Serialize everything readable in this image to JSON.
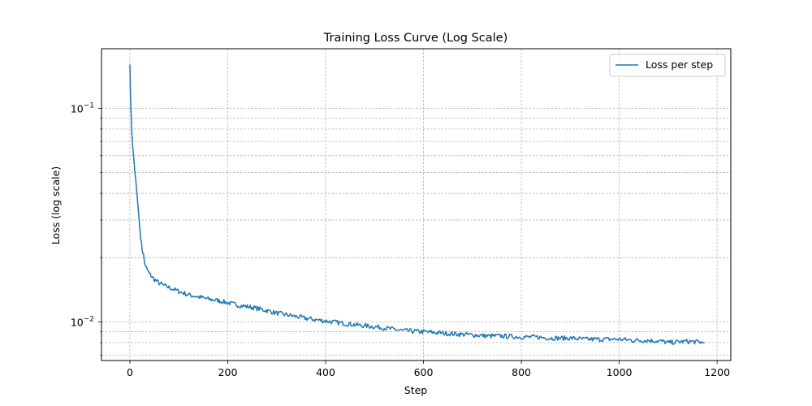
{
  "chart_data": {
    "type": "line",
    "title": "Training Loss Curve (Log Scale)",
    "xlabel": "Step",
    "ylabel": "Loss (log scale)",
    "y_scale": "log",
    "xlim": [
      -58,
      1228
    ],
    "ylim": [
      0.0066,
      0.19
    ],
    "x_ticks": [
      0,
      200,
      400,
      600,
      800,
      1000,
      1200
    ],
    "x_tick_labels": [
      "0",
      "200",
      "400",
      "600",
      "800",
      "1000",
      "1200"
    ],
    "y_major_ticks": [
      0.01,
      0.1
    ],
    "y_minor_ticks": [
      0.007,
      0.008,
      0.009,
      0.02,
      0.03,
      0.04,
      0.05,
      0.06,
      0.07,
      0.08,
      0.09
    ],
    "grid": true,
    "legend_position": "top-right",
    "legend": [
      "Loss per step"
    ],
    "series": [
      {
        "name": "Loss per step",
        "color": "#1f77b4",
        "x": [
          0,
          1,
          2,
          3,
          4,
          5,
          6,
          8,
          10,
          12,
          14,
          16,
          18,
          20,
          22,
          25,
          28,
          30,
          33,
          36,
          40,
          45,
          50,
          60,
          70,
          80,
          90,
          100,
          120,
          140,
          160,
          180,
          200,
          220,
          250,
          280,
          300,
          330,
          360,
          400,
          430,
          460,
          500,
          530,
          560,
          600,
          630,
          660,
          700,
          730,
          760,
          800,
          830,
          860,
          900,
          930,
          960,
          1000,
          1030,
          1060,
          1090,
          1100,
          1130,
          1150,
          1174
        ],
        "y": [
          0.16,
          0.12,
          0.1,
          0.088,
          0.076,
          0.07,
          0.065,
          0.058,
          0.051,
          0.046,
          0.041,
          0.036,
          0.032,
          0.028,
          0.025,
          0.022,
          0.0205,
          0.019,
          0.018,
          0.0175,
          0.0168,
          0.0163,
          0.0158,
          0.0152,
          0.0148,
          0.0145,
          0.0142,
          0.0139,
          0.0134,
          0.0131,
          0.0128,
          0.0126,
          0.0123,
          0.012,
          0.0117,
          0.0113,
          0.011,
          0.0107,
          0.0104,
          0.0101,
          0.0099,
          0.0097,
          0.0095,
          0.0093,
          0.0091,
          0.009,
          0.0089,
          0.0088,
          0.0087,
          0.0086,
          0.0086,
          0.0085,
          0.0085,
          0.0084,
          0.0084,
          0.0083,
          0.0083,
          0.0083,
          0.0082,
          0.0082,
          0.0081,
          0.008,
          0.0081,
          0.0081,
          0.008
        ]
      }
    ]
  }
}
